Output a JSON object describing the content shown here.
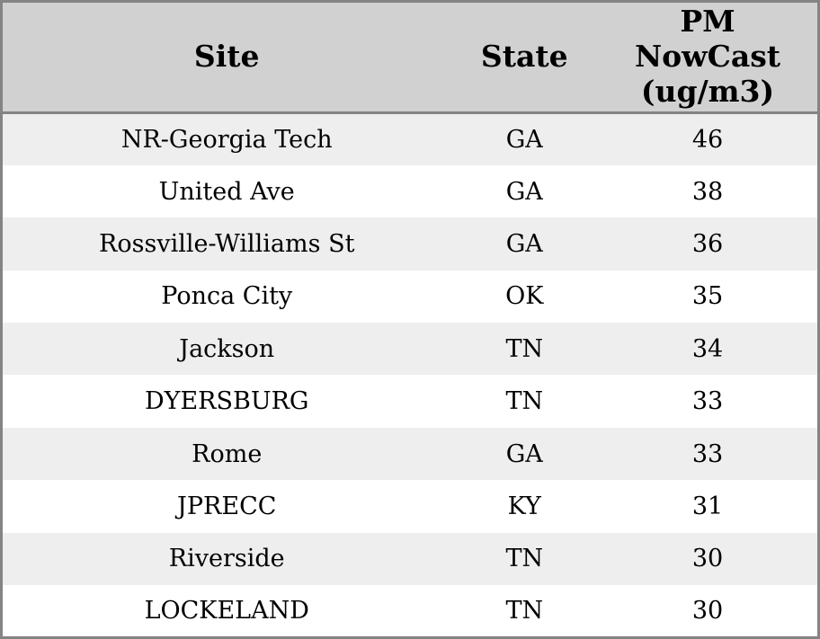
{
  "colors": {
    "outer_border": "#848484",
    "header_background": "#d1d1d1",
    "stripe_row_background": "#eeeeee",
    "plain_row_background": "#ffffff",
    "text": "#000000"
  },
  "chart_data": {
    "type": "table",
    "columns": [
      "Site",
      "State",
      "PM NowCast (ug/m3)"
    ],
    "rows": [
      [
        "NR-Georgia Tech",
        "GA",
        46
      ],
      [
        "United Ave",
        "GA",
        38
      ],
      [
        "Rossville-Williams St",
        "GA",
        36
      ],
      [
        "Ponca City",
        "OK",
        35
      ],
      [
        "Jackson",
        "TN",
        34
      ],
      [
        "DYERSBURG",
        "TN",
        33
      ],
      [
        "Rome",
        "GA",
        33
      ],
      [
        "JPRECC",
        "KY",
        31
      ],
      [
        "Riverside",
        "TN",
        30
      ],
      [
        "LOCKELAND",
        "TN",
        30
      ]
    ]
  },
  "table": {
    "headers": {
      "site": "Site",
      "state": "State",
      "pm": "PM NowCast (ug/m3)"
    },
    "rows": [
      {
        "site": "NR-Georgia Tech",
        "state": "GA",
        "pm": "46"
      },
      {
        "site": "United Ave",
        "state": "GA",
        "pm": "38"
      },
      {
        "site": "Rossville-Williams St",
        "state": "GA",
        "pm": "36"
      },
      {
        "site": "Ponca City",
        "state": "OK",
        "pm": "35"
      },
      {
        "site": "Jackson",
        "state": "TN",
        "pm": "34"
      },
      {
        "site": "DYERSBURG",
        "state": "TN",
        "pm": "33"
      },
      {
        "site": "Rome",
        "state": "GA",
        "pm": "33"
      },
      {
        "site": "JPRECC",
        "state": "KY",
        "pm": "31"
      },
      {
        "site": "Riverside",
        "state": "TN",
        "pm": "30"
      },
      {
        "site": "LOCKELAND",
        "state": "TN",
        "pm": "30"
      }
    ]
  }
}
